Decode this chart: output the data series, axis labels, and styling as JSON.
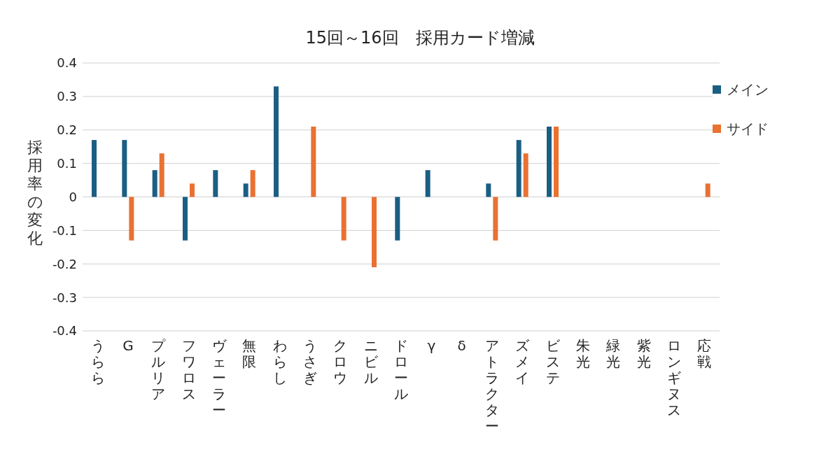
{
  "chart_data": {
    "type": "bar",
    "title": "15回～16回　採用カード増減",
    "ylabel": "採用率の変化",
    "categories": [
      "うらら",
      "G",
      "プルリア",
      "フワロス",
      "ヴェーラー",
      "無限",
      "わらし",
      "うさぎ",
      "クロウ",
      "ニビル",
      "ドロール",
      "γ",
      "δ",
      "アトラクター",
      "ズメイ",
      "ビステ",
      "朱光",
      "緑光",
      "紫光",
      "ロンギヌス",
      "応戦"
    ],
    "series": [
      {
        "name": "メイン",
        "color": "#1b5e83",
        "values": [
          0.17,
          0.17,
          0.08,
          -0.13,
          0.08,
          0.04,
          0.33,
          0,
          0,
          0,
          -0.13,
          0.08,
          0,
          0.04,
          0.17,
          0.21,
          0,
          0,
          0,
          0,
          0
        ]
      },
      {
        "name": "サイド",
        "color": "#e97132",
        "values": [
          0,
          -0.13,
          0.13,
          0.04,
          0,
          0.08,
          0,
          0.21,
          -0.13,
          -0.21,
          0,
          0,
          0,
          -0.13,
          0.13,
          0.21,
          0,
          0,
          0,
          0,
          0.04
        ]
      }
    ],
    "ylim": [
      -0.4,
      0.4
    ],
    "yticks": [
      -0.4,
      -0.3,
      -0.2,
      -0.1,
      0,
      0.1,
      0.2,
      0.3,
      0.4
    ],
    "grid": "y",
    "legend": "top right"
  }
}
